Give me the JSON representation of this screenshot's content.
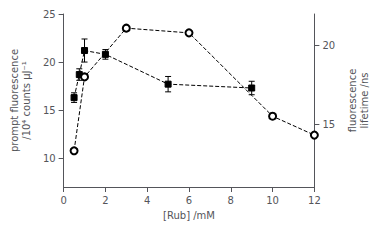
{
  "chart_data": {
    "type": "line",
    "xlabel": "[Rub] /mM",
    "ylabel": "prompt fluorescence\n/10⁴ counts μJ⁻¹",
    "y2label": "fluorescence\nlifetime /ns",
    "xlim": [
      0,
      12
    ],
    "xticks": [
      0,
      2,
      4,
      6,
      8,
      10,
      12
    ],
    "ylim": [
      7,
      25
    ],
    "yticks": [
      10,
      15,
      20,
      25
    ],
    "y2lim": [
      11,
      22
    ],
    "y2ticks": [
      15,
      20
    ],
    "grid": false,
    "series": [
      {
        "x": [
          0.5,
          0.75,
          1.0,
          2.0,
          5.0,
          9.0
        ],
        "values": [
          16.3,
          18.7,
          21.2,
          20.8,
          17.7,
          17.3
        ],
        "error": [
          0.5,
          0.6,
          1.2,
          0.5,
          0.8,
          0.7
        ],
        "marker": "square",
        "line_style": "dashed",
        "color": "#000000",
        "axis": "y"
      },
      {
        "x": [
          0.5,
          1.0,
          3.0,
          6.0,
          10.0,
          12.0
        ],
        "values": [
          13.3,
          18.0,
          21.1,
          20.8,
          15.5,
          14.3
        ],
        "marker": "open_circle",
        "line_style": "dashed",
        "color": "#000000",
        "axis": "y2"
      }
    ]
  }
}
